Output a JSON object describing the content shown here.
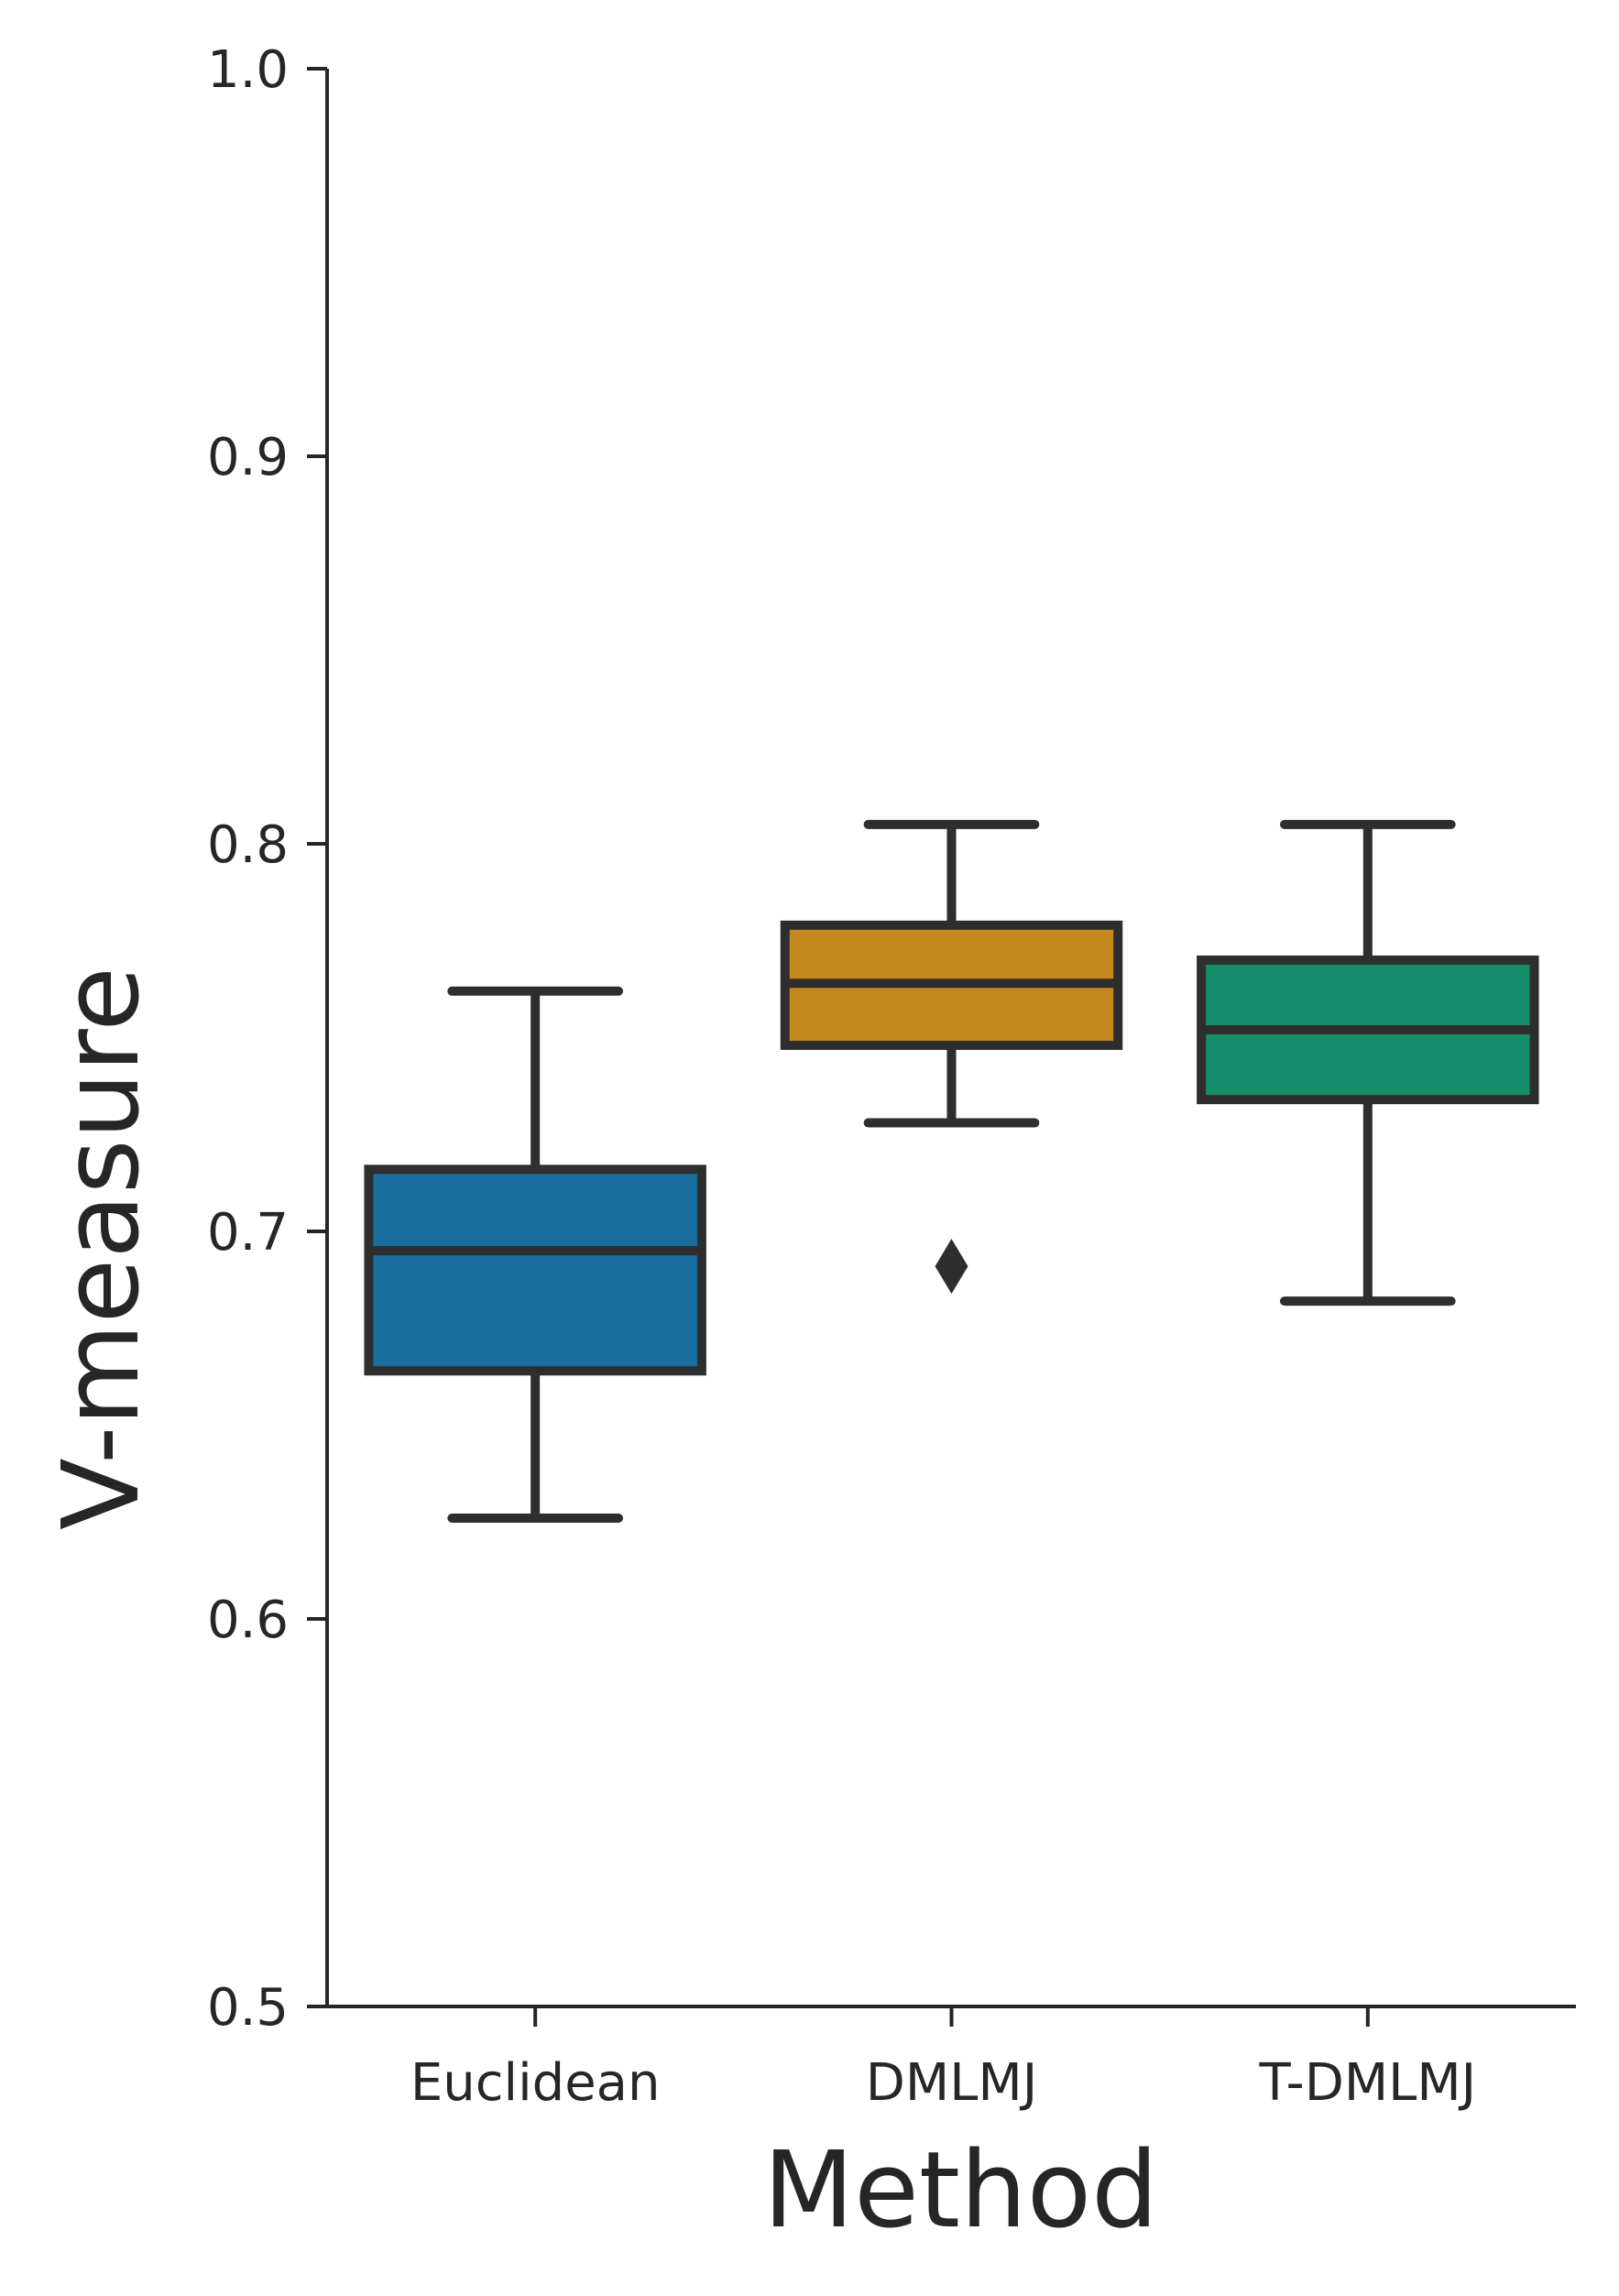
{
  "chart_data": {
    "type": "box",
    "title": "",
    "xlabel": "Method",
    "ylabel": "V-measure",
    "ylim": [
      0.5,
      1.0
    ],
    "yticks": [
      "0.5",
      "0.6",
      "0.7",
      "0.8",
      "0.9",
      "1.0"
    ],
    "categories": [
      "Euclidean",
      "DMLMJ",
      "T-DMLMJ"
    ],
    "grid": false,
    "legend": "none",
    "series": [
      {
        "color": "#1a6e9f",
        "boxes": [
          {
            "category": "Euclidean",
            "whisker_low": 0.626,
            "q1": 0.664,
            "median": 0.695,
            "q3": 0.716,
            "whisker_high": 0.762,
            "outliers": []
          },
          {
            "category": "DMLMJ",
            "whisker_low": 0.728,
            "q1": 0.748,
            "median": 0.764,
            "q3": 0.779,
            "whisker_high": 0.805,
            "outliers": [
              0.691
            ]
          },
          {
            "category": "T-DMLMJ",
            "whisker_low": 0.682,
            "q1": 0.734,
            "median": 0.752,
            "q3": 0.77,
            "whisker_high": 0.805,
            "outliers": []
          }
        ]
      }
    ],
    "box_colors": [
      "#1a6e9f",
      "#c6871f",
      "#168d6a"
    ],
    "edge_color": "#2e2e2e",
    "axis_color": "#262626"
  }
}
